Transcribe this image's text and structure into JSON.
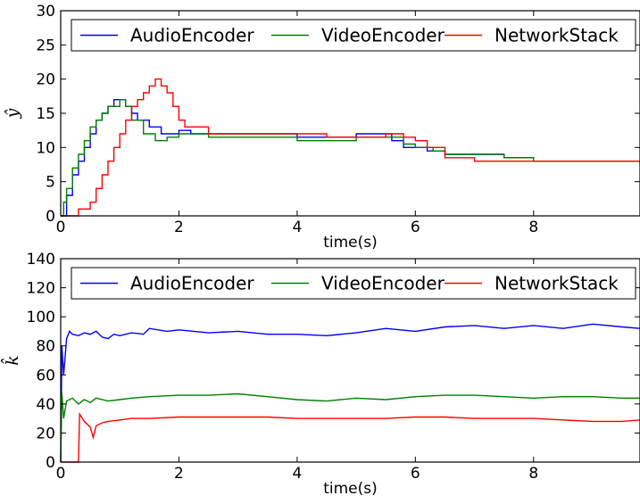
{
  "chart_data": [
    {
      "type": "line",
      "title": "",
      "xlabel": "time(s)",
      "ylabel": "ŷ",
      "xlim": [
        0,
        9.8
      ],
      "ylim": [
        0,
        30
      ],
      "xticks": [
        "0",
        "2",
        "4",
        "6",
        "8"
      ],
      "yticks": [
        "0",
        "5",
        "10",
        "15",
        "20",
        "25",
        "30"
      ],
      "legend_position": "top",
      "grid": false,
      "series": [
        {
          "name": "AudioEncoder",
          "color": "#0000ff",
          "style": "step",
          "x": [
            0,
            0.1,
            0.2,
            0.3,
            0.4,
            0.5,
            0.6,
            0.7,
            0.8,
            0.9,
            1.0,
            1.1,
            1.2,
            1.3,
            1.5,
            1.7,
            2.0,
            2.2,
            2.5,
            3.0,
            3.5,
            4.0,
            4.5,
            5.0,
            5.5,
            5.6,
            5.8,
            6.0,
            6.2,
            6.5,
            6.8,
            7.0,
            7.5,
            8.0,
            8.5,
            9.0,
            9.5,
            9.8
          ],
          "values": [
            0,
            3,
            6,
            8,
            10,
            12,
            14,
            15,
            16,
            17,
            17,
            16,
            15,
            14,
            13,
            12,
            12.5,
            12,
            12,
            12,
            12,
            11.5,
            11.5,
            12,
            12,
            11,
            10,
            10,
            9.5,
            9,
            9,
            9,
            8.5,
            8,
            8,
            8,
            8,
            8
          ]
        },
        {
          "name": "VideoEncoder",
          "color": "#008000",
          "style": "step",
          "x": [
            0,
            0.05,
            0.1,
            0.2,
            0.3,
            0.4,
            0.5,
            0.6,
            0.7,
            0.8,
            0.9,
            1.0,
            1.1,
            1.2,
            1.4,
            1.6,
            1.8,
            2.0,
            2.5,
            3.0,
            3.5,
            4.0,
            4.5,
            5.0,
            5.5,
            5.8,
            6.0,
            6.3,
            6.5,
            7.0,
            7.5,
            8.0,
            8.5,
            9.0,
            9.5,
            9.8
          ],
          "values": [
            0,
            2,
            4,
            7,
            9,
            11,
            13,
            14,
            15,
            16,
            16,
            17,
            16,
            14,
            12,
            11,
            11.5,
            12,
            11.5,
            11.5,
            11.5,
            11,
            11,
            11.5,
            11.5,
            10.5,
            10,
            9.5,
            9,
            9,
            8.5,
            8,
            8,
            8,
            8,
            7.5
          ]
        },
        {
          "name": "NetworkStack",
          "color": "#ff0000",
          "style": "step",
          "x": [
            0,
            0.3,
            0.5,
            0.6,
            0.7,
            0.8,
            0.9,
            1.0,
            1.1,
            1.2,
            1.3,
            1.4,
            1.5,
            1.6,
            1.7,
            1.8,
            1.9,
            2.0,
            2.1,
            2.5,
            3.0,
            3.5,
            4.0,
            4.5,
            5.0,
            5.5,
            5.8,
            6.0,
            6.2,
            6.5,
            7.0,
            7.5,
            8.0,
            8.5,
            9.0,
            9.5,
            9.8
          ],
          "values": [
            0,
            1,
            2,
            4,
            6,
            8,
            10,
            12,
            14,
            16,
            17,
            18,
            19,
            20,
            19,
            18,
            16,
            14,
            13,
            12,
            12,
            12,
            12,
            11.5,
            11.5,
            12,
            11.5,
            11,
            10,
            8.5,
            8,
            8,
            8,
            8,
            8,
            8,
            8
          ]
        }
      ]
    },
    {
      "type": "line",
      "title": "",
      "xlabel": "time(s)",
      "ylabel": "k̂",
      "xlim": [
        0,
        9.8
      ],
      "ylim": [
        0,
        140
      ],
      "xticks": [
        "0",
        "2",
        "4",
        "6",
        "8"
      ],
      "yticks": [
        "0",
        "20",
        "40",
        "60",
        "80",
        "100",
        "120",
        "140"
      ],
      "legend_position": "top",
      "grid": false,
      "series": [
        {
          "name": "AudioEncoder",
          "color": "#0000ff",
          "x": [
            0,
            0.02,
            0.05,
            0.1,
            0.15,
            0.2,
            0.3,
            0.4,
            0.5,
            0.6,
            0.7,
            0.8,
            0.9,
            1.0,
            1.2,
            1.4,
            1.5,
            1.8,
            2.0,
            2.5,
            3.0,
            3.5,
            4.0,
            4.5,
            5.0,
            5.5,
            6.0,
            6.5,
            7.0,
            7.5,
            8.0,
            8.5,
            9.0,
            9.5,
            9.8
          ],
          "values": [
            0,
            80,
            60,
            85,
            90,
            88,
            87,
            89,
            88,
            90,
            86,
            85,
            88,
            87,
            89,
            88,
            92,
            90,
            91,
            89,
            90,
            88,
            88,
            87,
            89,
            92,
            90,
            93,
            94,
            92,
            94,
            92,
            95,
            93,
            92
          ]
        },
        {
          "name": "VideoEncoder",
          "color": "#008000",
          "x": [
            0,
            0.02,
            0.05,
            0.1,
            0.2,
            0.3,
            0.4,
            0.5,
            0.6,
            0.8,
            1.0,
            1.2,
            1.5,
            2.0,
            2.5,
            3.0,
            3.5,
            4.0,
            4.5,
            5.0,
            5.5,
            6.0,
            6.5,
            7.0,
            7.5,
            8.0,
            8.5,
            9.0,
            9.5,
            9.8
          ],
          "values": [
            0,
            48,
            30,
            42,
            44,
            40,
            43,
            41,
            44,
            42,
            43,
            44,
            45,
            46,
            46,
            47,
            45,
            43,
            42,
            44,
            43,
            45,
            46,
            46,
            45,
            44,
            45,
            45,
            44,
            44
          ]
        },
        {
          "name": "NetworkStack",
          "color": "#ff0000",
          "x": [
            0,
            0.3,
            0.32,
            0.4,
            0.5,
            0.55,
            0.6,
            0.7,
            0.8,
            1.0,
            1.2,
            1.5,
            2.0,
            2.5,
            3.0,
            3.5,
            4.0,
            4.5,
            5.0,
            5.5,
            6.0,
            6.5,
            7.0,
            7.5,
            8.0,
            8.5,
            9.0,
            9.5,
            9.8
          ],
          "values": [
            0,
            0,
            33,
            28,
            24,
            17,
            25,
            27,
            28,
            29,
            30,
            30,
            31,
            31,
            31,
            31,
            30,
            30,
            30,
            30,
            31,
            31,
            30,
            30,
            30,
            29,
            28,
            28,
            29
          ]
        }
      ]
    }
  ]
}
